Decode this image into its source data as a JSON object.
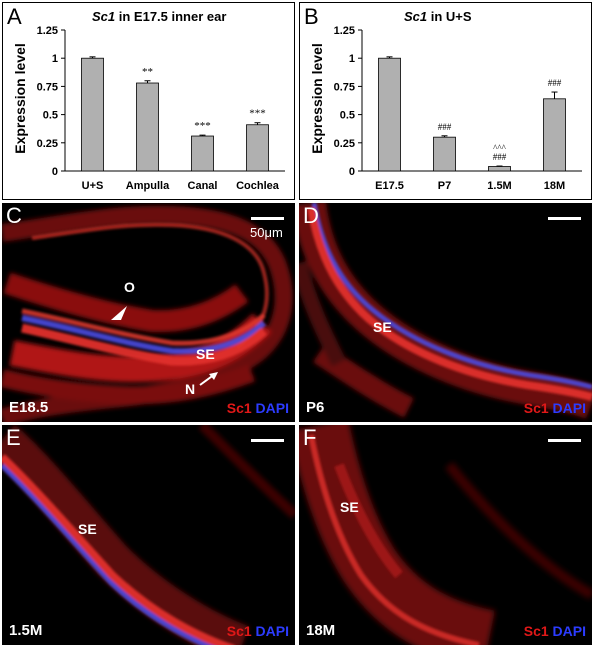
{
  "chart_data": [
    {
      "panel": "A",
      "type": "bar",
      "title_gene": "Sc1",
      "title_rest": " in E17.5 inner ear",
      "ylabel": "Expression level",
      "ylim": [
        0,
        1.25
      ],
      "yticks": [
        "0",
        "0.25",
        "0.5",
        "0.75",
        "1",
        "1.25"
      ],
      "categories": [
        "U+S",
        "Ampulla",
        "Canal",
        "Cochlea"
      ],
      "values": [
        1.0,
        0.78,
        0.31,
        0.41
      ],
      "errors": [
        0.012,
        0.02,
        0.008,
        0.018
      ],
      "annotations": [
        [
          "",
          ""
        ],
        [
          "**",
          ""
        ],
        [
          "***",
          ""
        ],
        [
          "***",
          ""
        ]
      ],
      "bar_color": "#b0b0b0"
    },
    {
      "panel": "B",
      "type": "bar",
      "title_gene": "Sc1",
      "title_rest": " in U+S",
      "ylabel": "Expression level",
      "ylim": [
        0,
        1.25
      ],
      "yticks": [
        "0",
        "0.25",
        "0.5",
        "0.75",
        "1",
        "1.25"
      ],
      "categories": [
        "E17.5",
        "P7",
        "1.5M",
        "18M"
      ],
      "values": [
        1.0,
        0.3,
        0.04,
        0.64
      ],
      "errors": [
        0.012,
        0.012,
        0.004,
        0.06
      ],
      "annotations": [
        [
          "",
          ""
        ],
        [
          "###",
          ""
        ],
        [
          "^^^",
          "###"
        ],
        [
          "###",
          ""
        ]
      ],
      "bar_color": "#b0b0b0"
    }
  ],
  "micrographs": [
    {
      "letter": "C",
      "stage": "E18.5",
      "tissue_labels": [
        "O",
        "SE",
        "N"
      ],
      "scale_label": "50μm"
    },
    {
      "letter": "D",
      "stage": "P6",
      "tissue_labels": [
        "SE"
      ]
    },
    {
      "letter": "E",
      "stage": "1.5M",
      "tissue_labels": [
        "SE"
      ]
    },
    {
      "letter": "F",
      "stage": "18M",
      "tissue_labels": [
        "SE"
      ]
    }
  ],
  "stain": {
    "marker": "Sc1",
    "counterstain": "DAPI",
    "marker_color": "#e01818",
    "counterstain_color": "#2c3cff"
  }
}
